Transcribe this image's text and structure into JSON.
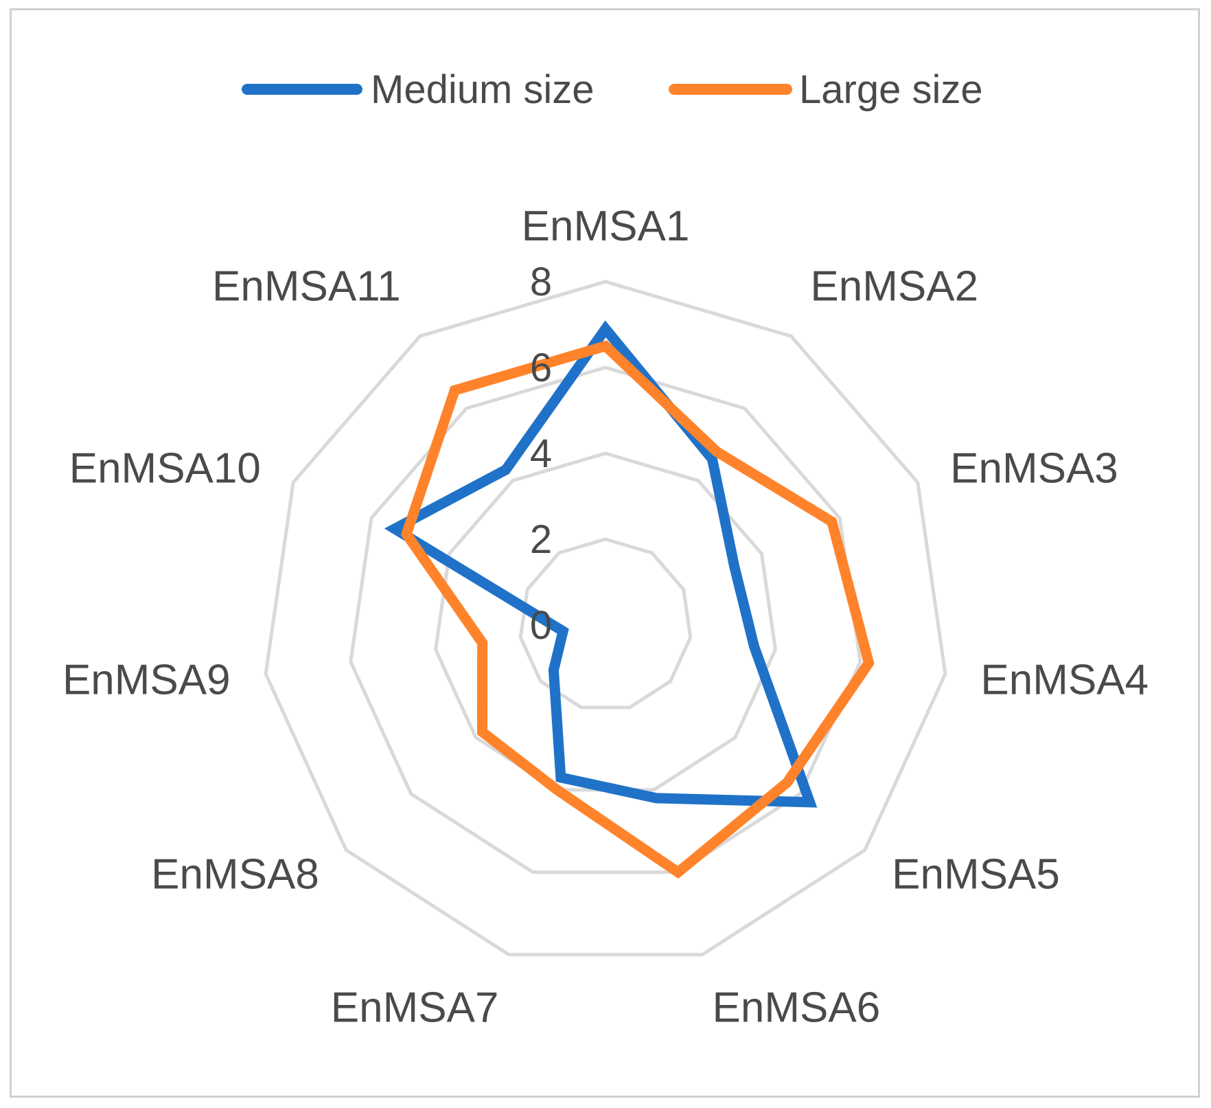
{
  "chart_data": {
    "type": "radar",
    "categories": [
      "EnMSA1",
      "EnMSA2",
      "EnMSA3",
      "EnMSA4",
      "EnMSA5",
      "EnMSA6",
      "EnMSA7",
      "EnMSA8",
      "EnMSA9",
      "EnMSA10",
      "EnMSA11"
    ],
    "series": [
      {
        "name": "Medium size",
        "color": "#1f72c8",
        "values": [
          6.9,
          4.6,
          3.3,
          3.5,
          6.3,
          4.2,
          3.7,
          1.6,
          1.0,
          5.4,
          4.3
        ]
      },
      {
        "name": "Large size",
        "color": "#ff832b",
        "values": [
          6.5,
          4.8,
          5.8,
          6.2,
          5.6,
          6.0,
          4.0,
          3.8,
          2.9,
          5.1,
          6.5
        ]
      }
    ],
    "ticks": [
      "0",
      "2",
      "4",
      "6",
      "8"
    ],
    "rlim": [
      0,
      8
    ],
    "legend_position": "top",
    "grid": true,
    "grid_color": "#d9d9d9"
  }
}
